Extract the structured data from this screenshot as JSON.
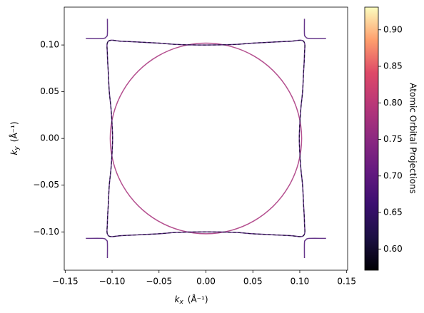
{
  "chart_data": {
    "type": "line",
    "xlabel": [
      "k",
      "x",
      "(Å⁻¹)"
    ],
    "ylabel": [
      "k",
      "y",
      "(Å⁻¹)"
    ],
    "xlim": [
      -0.151,
      0.151
    ],
    "ylim": [
      -0.141,
      0.1405
    ],
    "xticks": [
      {
        "value": -0.15,
        "label": "−0.15"
      },
      {
        "value": -0.1,
        "label": "−0.10"
      },
      {
        "value": -0.05,
        "label": "−0.05"
      },
      {
        "value": 0,
        "label": "0.00"
      },
      0.05,
      {
        "value": 0.1,
        "label": "0.10"
      },
      0.15
    ],
    "yticks": [
      {
        "value": -0.1,
        "label": "−0.10"
      },
      {
        "value": -0.05,
        "label": "−0.05"
      },
      {
        "value": 0,
        "label": "0.00"
      },
      0.05,
      {
        "value": 0.1,
        "label": "0.10"
      }
    ],
    "colormap": "magma",
    "colorbar": {
      "label": "Atomic Orbital Projections",
      "lim": [
        0.571,
        0.931
      ],
      "ticks": [
        {
          "value": 0.6,
          "label": "0.60"
        },
        0.65,
        {
          "value": 0.7,
          "label": "0.70"
        },
        0.75,
        {
          "value": 0.8,
          "label": "0.80"
        },
        0.85,
        {
          "value": 0.9,
          "label": "0.90"
        }
      ]
    },
    "series": [
      {
        "value": 0.78,
        "linestyle": "solid",
        "x": [
          0.102,
          0.0985,
          0.0883,
          0.0721,
          0.051,
          0.0264,
          0,
          -0.0264,
          -0.051,
          -0.0721,
          -0.0883,
          -0.0985,
          -0.102,
          -0.0985,
          -0.0883,
          -0.0721,
          -0.051,
          -0.0264,
          0,
          0.0264,
          0.051,
          0.0721,
          0.0883,
          0.0985,
          0.102
        ],
        "y": [
          0,
          0.0264,
          0.051,
          0.0721,
          0.0883,
          0.0985,
          0.102,
          0.0985,
          0.0883,
          0.0721,
          0.051,
          0.0264,
          0,
          -0.0264,
          -0.051,
          -0.0721,
          -0.0883,
          -0.0985,
          -0.102,
          -0.0985,
          -0.0883,
          -0.0721,
          -0.051,
          -0.0264,
          0
        ]
      },
      {
        "value": 0.68,
        "linestyle": "solid",
        "x": [
          -0.104,
          -0.09,
          -0.07,
          -0.05,
          -0.03,
          0,
          0.03,
          0.05,
          0.07,
          0.09,
          0.104,
          0.105,
          0.104,
          0.103,
          0.101,
          0.0995,
          0.101,
          0.103,
          0.104,
          0.105,
          0.104,
          0.09,
          0.07,
          0.05,
          0.03,
          0,
          -0.03,
          -0.05,
          -0.07,
          -0.09,
          -0.104,
          -0.105,
          -0.104,
          -0.103,
          -0.101,
          -0.0995,
          -0.101,
          -0.103,
          -0.104,
          -0.105,
          -0.104
        ],
        "y": [
          0.104,
          0.104,
          0.103,
          0.102,
          0.1005,
          0.1,
          0.1005,
          0.102,
          0.103,
          0.104,
          0.104,
          0.09,
          0.07,
          0.05,
          0.03,
          0,
          -0.03,
          -0.05,
          -0.07,
          -0.09,
          -0.104,
          -0.104,
          -0.103,
          -0.102,
          -0.1005,
          -0.1,
          -0.1005,
          -0.102,
          -0.103,
          -0.104,
          -0.104,
          -0.09,
          -0.07,
          -0.05,
          -0.03,
          0,
          0.03,
          0.05,
          0.07,
          0.09,
          0.104
        ]
      },
      {
        "value": 0.6,
        "linestyle": "dashed",
        "x": [
          -0.104,
          -0.09,
          -0.07,
          -0.05,
          -0.03,
          0,
          0.03,
          0.05,
          0.07,
          0.09,
          0.104,
          0.105,
          0.104,
          0.103,
          0.101,
          0.0995,
          0.101,
          0.103,
          0.104,
          0.105,
          0.104,
          0.09,
          0.07,
          0.05,
          0.03,
          0,
          -0.03,
          -0.05,
          -0.07,
          -0.09,
          -0.104,
          -0.105,
          -0.104,
          -0.103,
          -0.101,
          -0.0995,
          -0.101,
          -0.103,
          -0.104,
          -0.105,
          -0.104
        ],
        "y": [
          0.104,
          0.104,
          0.103,
          0.102,
          0.1005,
          0.1,
          0.1005,
          0.102,
          0.103,
          0.104,
          0.104,
          0.09,
          0.07,
          0.05,
          0.03,
          0,
          -0.03,
          -0.05,
          -0.07,
          -0.09,
          -0.104,
          -0.104,
          -0.103,
          -0.102,
          -0.1005,
          -0.1,
          -0.1005,
          -0.102,
          -0.103,
          -0.104,
          -0.104,
          -0.09,
          -0.07,
          -0.05,
          -0.03,
          0,
          0.03,
          0.05,
          0.07,
          0.09,
          0.104
        ]
      },
      {
        "value": 0.68,
        "linestyle": "solid",
        "x": [
          -0.128,
          -0.11,
          -0.106,
          -0.105,
          -0.105
        ],
        "y": [
          0.107,
          0.107,
          0.109,
          0.112,
          0.128
        ]
      },
      {
        "value": 0.68,
        "linestyle": "solid",
        "x": [
          0.128,
          0.11,
          0.106,
          0.105,
          0.105
        ],
        "y": [
          0.107,
          0.107,
          0.109,
          0.112,
          0.128
        ]
      },
      {
        "value": 0.68,
        "linestyle": "solid",
        "x": [
          -0.128,
          -0.11,
          -0.106,
          -0.105,
          -0.105
        ],
        "y": [
          -0.107,
          -0.107,
          -0.109,
          -0.112,
          -0.128
        ]
      },
      {
        "value": 0.68,
        "linestyle": "solid",
        "x": [
          0.128,
          0.11,
          0.106,
          0.105,
          0.105
        ],
        "y": [
          -0.107,
          -0.107,
          -0.109,
          -0.112,
          -0.128
        ]
      }
    ]
  }
}
